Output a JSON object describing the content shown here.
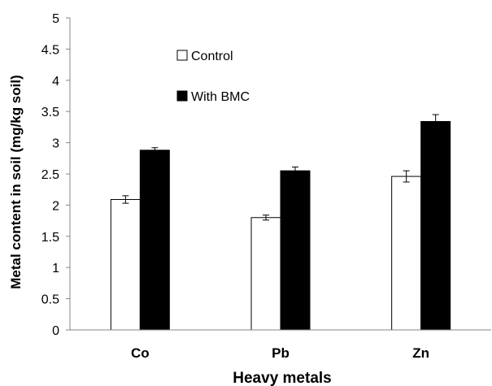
{
  "chart_data": {
    "type": "bar",
    "xlabel": "Heavy metals",
    "ylabel": "Metal content in soil (mg/kg soil)",
    "ylim": [
      0,
      5
    ],
    "yticks": [
      "0",
      "0.5",
      "1",
      "1.5",
      "2",
      "2.5",
      "3",
      "3.5",
      "4",
      "4.5",
      "5"
    ],
    "categories": [
      "Co",
      "Pb",
      "Zn"
    ],
    "series": [
      {
        "name": "Control",
        "values": [
          2.09,
          1.8,
          2.46
        ],
        "errors": [
          0.06,
          0.04,
          0.09
        ],
        "color": "#ffffff"
      },
      {
        "name": "With BMC",
        "values": [
          2.88,
          2.55,
          3.34
        ],
        "errors": [
          0.04,
          0.06,
          0.11
        ],
        "color": "#000000"
      }
    ],
    "legend_position": "top-center",
    "grid": false
  }
}
